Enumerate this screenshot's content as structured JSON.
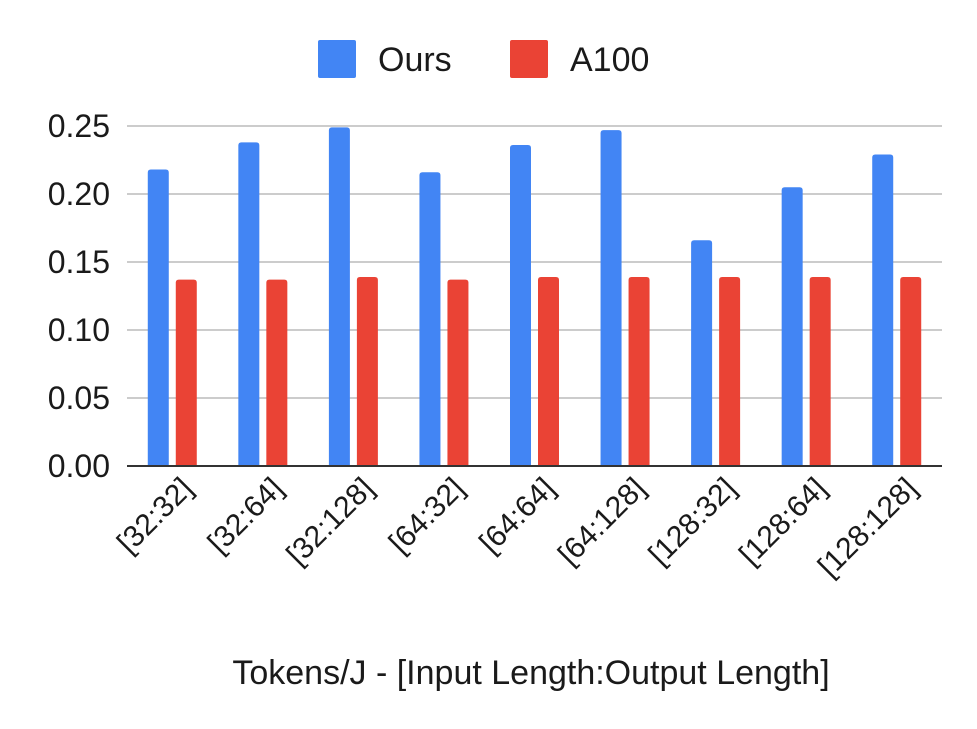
{
  "chart_data": {
    "type": "bar",
    "categories": [
      "[32:32]",
      "[32:64]",
      "[32:128]",
      "[64:32]",
      "[64:64]",
      "[64:128]",
      "[128:32]",
      "[128:64]",
      "[128:128]"
    ],
    "series": [
      {
        "name": "Ours",
        "color": "#4285F4",
        "values": [
          0.218,
          0.238,
          0.249,
          0.216,
          0.236,
          0.247,
          0.166,
          0.205,
          0.229
        ]
      },
      {
        "name": "A100",
        "color": "#EA4335",
        "values": [
          0.137,
          0.137,
          0.139,
          0.137,
          0.139,
          0.139,
          0.139,
          0.139,
          0.139
        ]
      }
    ],
    "title": "",
    "xlabel": "Tokens/J - [Input Length:Output Length]",
    "ylabel": "",
    "ylim": [
      0,
      0.25
    ],
    "yticks": [
      "0.00",
      "0.05",
      "0.10",
      "0.15",
      "0.20",
      "0.25"
    ],
    "grid": true,
    "legend_position": "top-center"
  }
}
